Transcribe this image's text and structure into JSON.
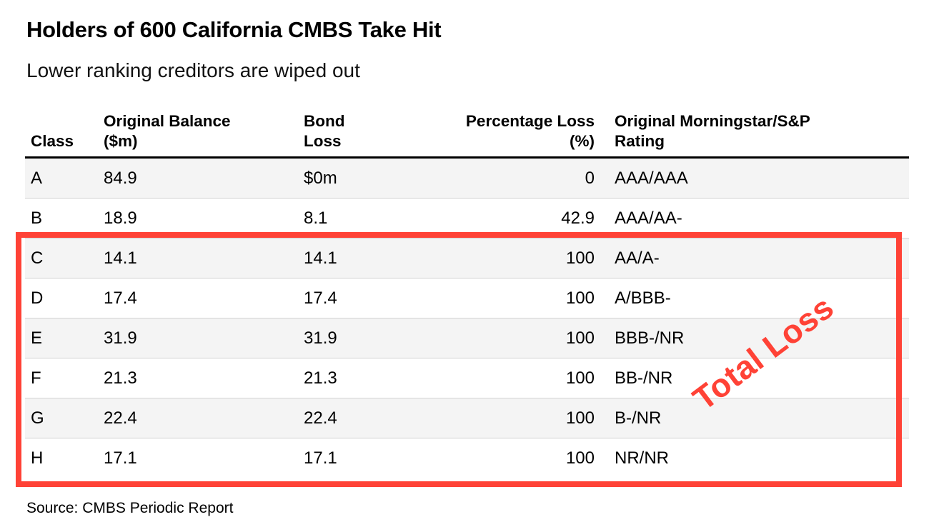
{
  "page": {
    "title": "Holders of 600 California CMBS Take Hit",
    "subtitle": "Lower ranking creditors are wiped out",
    "source": "Source: CMBS Periodic Report"
  },
  "annotation": {
    "label": "Total Loss",
    "color": "#FF4236",
    "covers_rows": "C through H"
  },
  "colors": {
    "accent_red": "#FF4236",
    "row_alt_background": "#F4F4F4",
    "row_separator": "#D2D2D2",
    "header_rule": "#000000"
  },
  "table": {
    "columns": [
      {
        "line1": "",
        "line2": "Class"
      },
      {
        "line1": "Original Balance",
        "line2": "($m)"
      },
      {
        "line1": "Bond",
        "line2": "Loss"
      },
      {
        "line1": "Percentage Loss",
        "line2": "(%)"
      },
      {
        "line1": "Original Morningstar/S&P",
        "line2": "Rating"
      }
    ],
    "rows": [
      {
        "class": "A",
        "original_balance": "84.9",
        "bond_loss": "$0m",
        "percentage_loss": "0",
        "rating": "AAA/AAA"
      },
      {
        "class": "B",
        "original_balance": "18.9",
        "bond_loss": "8.1",
        "percentage_loss": "42.9",
        "rating": "AAA/AA-"
      },
      {
        "class": "C",
        "original_balance": "14.1",
        "bond_loss": "14.1",
        "percentage_loss": "100",
        "rating": "AA/A-"
      },
      {
        "class": "D",
        "original_balance": "17.4",
        "bond_loss": "17.4",
        "percentage_loss": "100",
        "rating": "A/BBB-"
      },
      {
        "class": "E",
        "original_balance": "31.9",
        "bond_loss": "31.9",
        "percentage_loss": "100",
        "rating": "BBB-/NR"
      },
      {
        "class": "F",
        "original_balance": "21.3",
        "bond_loss": "21.3",
        "percentage_loss": "100",
        "rating": "BB-/NR"
      },
      {
        "class": "G",
        "original_balance": "22.4",
        "bond_loss": "22.4",
        "percentage_loss": "100",
        "rating": "B-/NR"
      },
      {
        "class": "H",
        "original_balance": "17.1",
        "bond_loss": "17.1",
        "percentage_loss": "100",
        "rating": "NR/NR"
      }
    ]
  },
  "chart_data": {
    "type": "table",
    "title": "Holders of 600 California CMBS Take Hit",
    "subtitle": "Lower ranking creditors are wiped out",
    "columns": [
      "Class",
      "Original Balance ($m)",
      "Bond Loss",
      "Percentage Loss (%)",
      "Original Morningstar/S&P Rating"
    ],
    "rows": [
      [
        "A",
        84.9,
        "$0m",
        0,
        "AAA/AAA"
      ],
      [
        "B",
        18.9,
        8.1,
        42.9,
        "AAA/AA-"
      ],
      [
        "C",
        14.1,
        14.1,
        100,
        "AA/A-"
      ],
      [
        "D",
        17.4,
        17.4,
        100,
        "A/BBB-"
      ],
      [
        "E",
        31.9,
        31.9,
        100,
        "BBB-/NR"
      ],
      [
        "F",
        21.3,
        21.3,
        100,
        "BB-/NR"
      ],
      [
        "G",
        22.4,
        22.4,
        100,
        "B-/NR"
      ],
      [
        "H",
        17.1,
        17.1,
        100,
        "NR/NR"
      ]
    ],
    "annotations": [
      {
        "text": "Total Loss",
        "style": "red rotated label over red outlined box around rows C-H"
      }
    ],
    "source": "Source: CMBS Periodic Report"
  }
}
